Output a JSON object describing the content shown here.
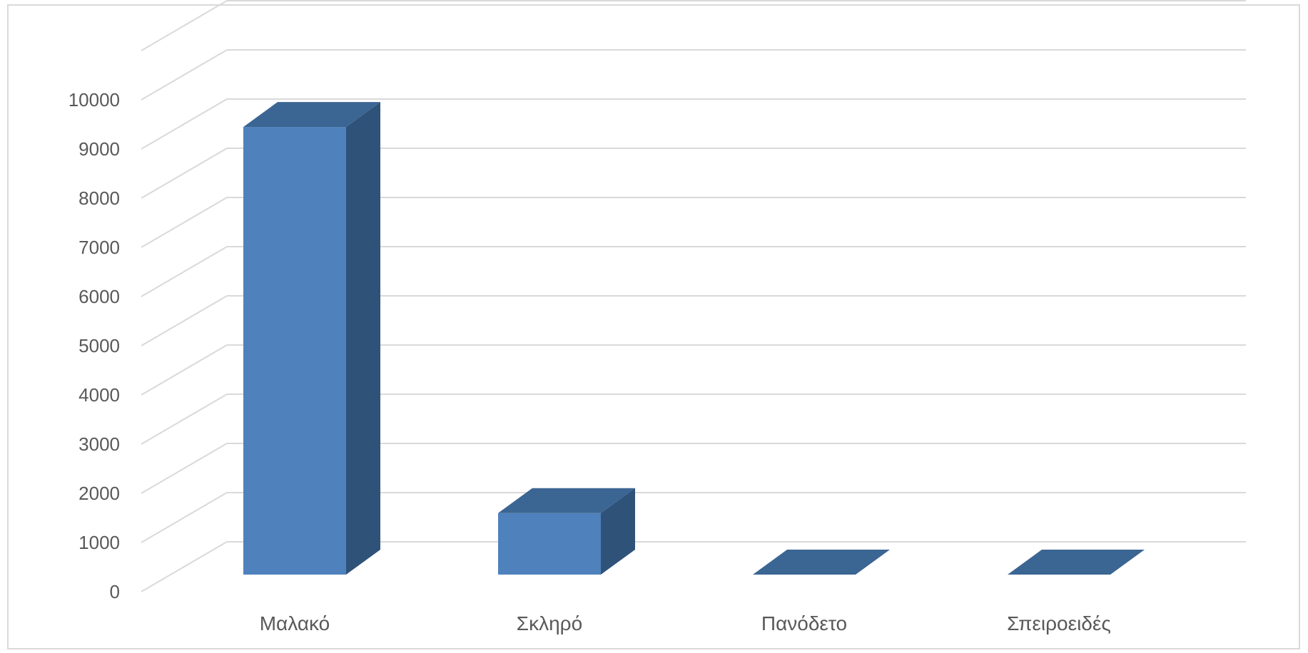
{
  "chart_data": {
    "type": "bar",
    "style": "3d-column",
    "categories": [
      "Μαλακό",
      "Σκληρό",
      "Πανόδετο",
      "Σπειροειδές"
    ],
    "values": [
      9100,
      1250,
      0,
      0
    ],
    "ylim": [
      0,
      10000
    ],
    "yticks": [
      "0",
      "1000",
      "2000",
      "3000",
      "4000",
      "5000",
      "6000",
      "7000",
      "8000",
      "9000",
      "10000"
    ],
    "grid": true,
    "legend": "none",
    "colors": {
      "bar_front": "#4f81bd",
      "bar_side": "#2f5279",
      "bar_top": "#3b6592",
      "grid": "#d9d9d9",
      "text": "#595959"
    }
  }
}
